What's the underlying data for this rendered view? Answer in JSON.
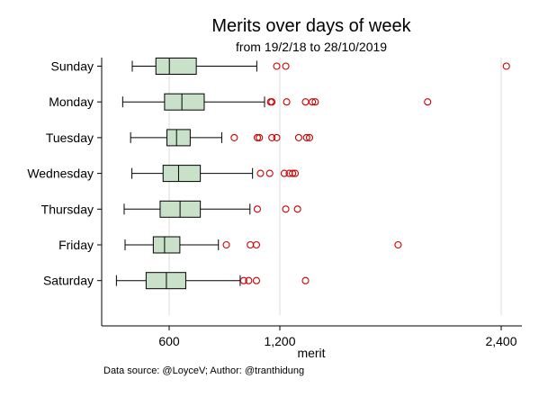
{
  "chart_data": {
    "type": "boxplot",
    "orientation": "horizontal",
    "title": "Merits over days of week",
    "subtitle": "from 19/2/18 to 28/10/2019",
    "xlabel": "merit",
    "ylabel": "",
    "xlim": [
      0,
      2600
    ],
    "xticks": [
      600,
      1200,
      2400
    ],
    "xtick_labels": [
      "600",
      "1,200",
      "2,400"
    ],
    "grid": "vertical",
    "legend": "none",
    "box_fill": "#c8e1c8",
    "outlier_color": "#cc0000",
    "categories": [
      "Sunday",
      "Monday",
      "Tuesday",
      "Wednesday",
      "Thursday",
      "Friday",
      "Saturday"
    ],
    "boxes": [
      {
        "category": "Sunday",
        "whisker_low": 400,
        "q1": 528,
        "median": 601,
        "q3": 747,
        "whisker_high": 1075,
        "outliers": [
          1183,
          1232,
          2428
        ]
      },
      {
        "category": "Monday",
        "whisker_low": 348,
        "q1": 575,
        "median": 669,
        "q3": 790,
        "whisker_high": 1117,
        "outliers": [
          1150,
          1157,
          1237,
          1339,
          1376,
          1392,
          2001
        ]
      },
      {
        "category": "Tuesday",
        "whisker_low": 391,
        "q1": 588,
        "median": 640,
        "q3": 714,
        "whisker_high": 885,
        "outliers": [
          953,
          1078,
          1089,
          1157,
          1183,
          1302,
          1345,
          1361
        ]
      },
      {
        "category": "Wednesday",
        "whisker_low": 398,
        "q1": 567,
        "median": 651,
        "q3": 769,
        "whisker_high": 1052,
        "outliers": [
          1095,
          1145,
          1224,
          1251,
          1269,
          1283
        ]
      },
      {
        "category": "Thursday",
        "whisker_low": 356,
        "q1": 551,
        "median": 659,
        "q3": 769,
        "whisker_high": 1038,
        "outliers": [
          1078,
          1232,
          1296
        ]
      },
      {
        "category": "Friday",
        "whisker_low": 361,
        "q1": 514,
        "median": 575,
        "q3": 658,
        "whisker_high": 867,
        "outliers": [
          910,
          1040,
          1073,
          1841
        ]
      },
      {
        "category": "Saturday",
        "whisker_low": 314,
        "q1": 475,
        "median": 585,
        "q3": 690,
        "whisker_high": 985,
        "outliers": [
          1004,
          1031,
          1073,
          1339
        ]
      }
    ]
  },
  "footer": {
    "source": "Data source: @LoyceV; Author: @tranthidung"
  }
}
